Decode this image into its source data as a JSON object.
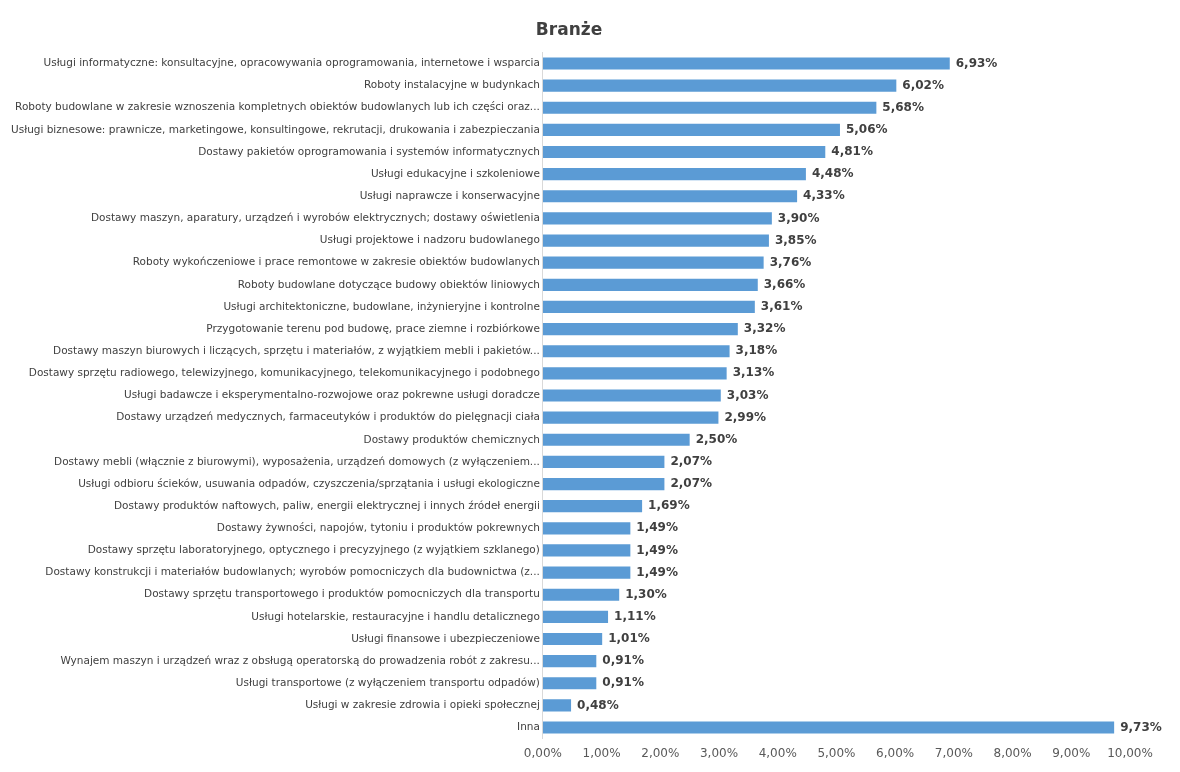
{
  "chart_data": {
    "type": "bar",
    "orientation": "horizontal",
    "title": "Branże",
    "categories": [
      "Usługi informatyczne: konsultacyjne, opracowywania oprogramowania, internetowe i wsparcia",
      "Roboty instalacyjne w budynkach",
      "Roboty budowlane w zakresie wznoszenia kompletnych obiektów budowlanych lub ich części oraz...",
      "Usługi biznesowe: prawnicze, marketingowe, konsultingowe, rekrutacji, drukowania i zabezpieczania",
      "Dostawy pakietów oprogramowania i systemów informatycznych",
      "Usługi edukacyjne i szkoleniowe",
      "Usługi naprawcze i konserwacyjne",
      "Dostawy maszyn, aparatury, urządzeń i wyrobów elektrycznych; dostawy oświetlenia",
      "Usługi projektowe i nadzoru budowlanego",
      "Roboty wykończeniowe i prace remontowe w zakresie obiektów budowlanych",
      "Roboty budowlane dotyczące budowy obiektów liniowych",
      "Usługi architektoniczne, budowlane, inżynieryjne i kontrolne",
      "Przygotowanie terenu pod budowę, prace ziemne i rozbiórkowe",
      "Dostawy maszyn biurowych i liczących, sprzętu i materiałów, z wyjątkiem mebli i pakietów...",
      "Dostawy sprzętu radiowego, telewizyjnego, komunikacyjnego, telekomunikacyjnego i podobnego",
      "Usługi badawcze i eksperymentalno-rozwojowe oraz pokrewne usługi doradcze",
      "Dostawy urządzeń medycznych, farmaceutyków i produktów do pielęgnacji ciała",
      "Dostawy produktów chemicznych",
      "Dostawy mebli (włącznie z biurowymi), wyposażenia, urządzeń domowych (z wyłączeniem...",
      "Usługi odbioru ścieków, usuwania odpadów, czyszczenia/sprzątania i usługi ekologiczne",
      "Dostawy produktów naftowych, paliw, energii elektrycznej i innych źródeł energii",
      "Dostawy żywności, napojów, tytoniu i produktów pokrewnych",
      "Dostawy sprzętu laboratoryjnego, optycznego i precyzyjnego (z wyjątkiem szklanego)",
      "Dostawy konstrukcji i materiałów budowlanych; wyrobów pomocniczych dla budownictwa (z...",
      "Dostawy sprzętu transportowego i produktów pomocniczych dla transportu",
      "Usługi hotelarskie, restauracyjne i handlu detalicznego",
      "Usługi finansowe i ubezpieczeniowe",
      "Wynajem maszyn i urządzeń wraz z obsługą operatorską do prowadzenia robót z zakresu...",
      "Usługi transportowe (z wyłączeniem transportu odpadów)",
      "Usługi w zakresie zdrowia i opieki społecznej",
      "Inna"
    ],
    "values": [
      6.93,
      6.02,
      5.68,
      5.06,
      4.81,
      4.48,
      4.33,
      3.9,
      3.85,
      3.76,
      3.66,
      3.61,
      3.32,
      3.18,
      3.13,
      3.03,
      2.99,
      2.5,
      2.07,
      2.07,
      1.69,
      1.49,
      1.49,
      1.49,
      1.3,
      1.11,
      1.01,
      0.91,
      0.91,
      0.48,
      9.73
    ],
    "value_labels": [
      "6,93%",
      "6,02%",
      "5,68%",
      "5,06%",
      "4,81%",
      "4,48%",
      "4,33%",
      "3,90%",
      "3,85%",
      "3,76%",
      "3,66%",
      "3,61%",
      "3,32%",
      "3,18%",
      "3,13%",
      "3,03%",
      "2,99%",
      "2,50%",
      "2,07%",
      "2,07%",
      "1,69%",
      "1,49%",
      "1,49%",
      "1,49%",
      "1,30%",
      "1,11%",
      "1,01%",
      "0,91%",
      "0,91%",
      "0,48%",
      "9,73%"
    ],
    "color": "#5b9bd5",
    "xlim": [
      0,
      10
    ],
    "xticks": [
      {
        "value": 0,
        "label": "0,00%"
      },
      {
        "value": 1,
        "label": "1,00%"
      },
      {
        "value": 2,
        "label": "2,00%"
      },
      {
        "value": 3,
        "label": "3,00%"
      },
      {
        "value": 4,
        "label": "4,00%"
      },
      {
        "value": 5,
        "label": "5,00%"
      },
      {
        "value": 6,
        "label": "6,00%"
      },
      {
        "value": 7,
        "label": "7,00%"
      },
      {
        "value": 8,
        "label": "8,00%"
      },
      {
        "value": 9,
        "label": "9,00%"
      },
      {
        "value": 10,
        "label": "10,00%"
      }
    ],
    "grid": false,
    "legend": false
  }
}
